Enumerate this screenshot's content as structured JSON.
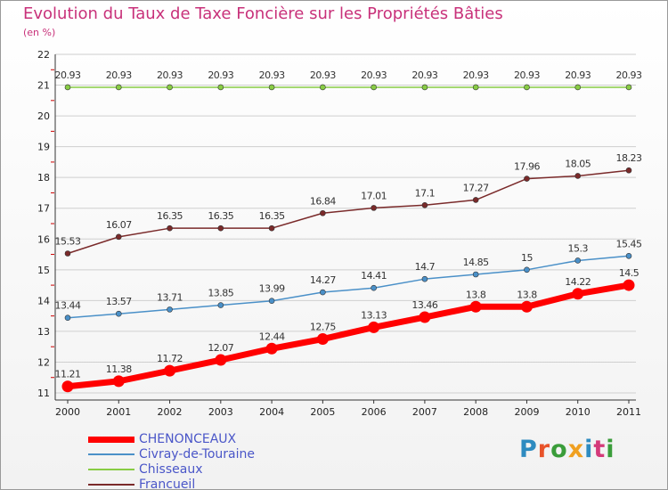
{
  "title": "Evolution du Taux de Taxe Foncière sur les Propriétés Bâties",
  "unit_label": "(en %)",
  "brand_logo": "Proxiti",
  "colors": {
    "title": "#c8317a",
    "legend_text": "#4a56c8",
    "grid": "#cfcfcf",
    "axis": "#333333",
    "logo": [
      "#2e8bc0",
      "#e8532a",
      "#3a9d3a",
      "#f0a020",
      "#2e8bc0",
      "#d43a7a",
      "#3a9d3a"
    ]
  },
  "chart_data": {
    "type": "line",
    "title": "Evolution du Taux de Taxe Foncière sur les Propriétés Bâties",
    "ylabel": "(en %)",
    "x": [
      "2000",
      "2001",
      "2002",
      "2003",
      "2004",
      "2005",
      "2006",
      "2007",
      "2008",
      "2009",
      "2010",
      "2011"
    ],
    "ylim": [
      11,
      22
    ],
    "yticks": [
      "11",
      "12",
      "13",
      "14",
      "15",
      "16",
      "17",
      "18",
      "19",
      "20",
      "21",
      "22"
    ],
    "grid": "horizontal",
    "legend_position": "bottom-left",
    "series": [
      {
        "name": "CHENONCEAUX",
        "color": "#ff0000",
        "values": [
          11.21,
          11.38,
          11.72,
          12.07,
          12.44,
          12.75,
          13.13,
          13.46,
          13.8,
          13.8,
          14.22,
          14.5
        ],
        "labels": [
          "11.21",
          "11.38",
          "11.72",
          "12.07",
          "12.44",
          "12.75",
          "13.13",
          "13.46",
          "13.8",
          "13.8",
          "14.22",
          "14.5"
        ]
      },
      {
        "name": "Civray-de-Touraine",
        "color": "#4a90c8",
        "values": [
          13.44,
          13.57,
          13.71,
          13.85,
          13.99,
          14.27,
          14.41,
          14.7,
          14.85,
          15,
          15.3,
          15.45
        ],
        "labels": [
          "13.44",
          "13.57",
          "13.71",
          "13.85",
          "13.99",
          "14.27",
          "14.41",
          "14.7",
          "14.85",
          "15",
          "15.3",
          "15.45"
        ]
      },
      {
        "name": "Chisseaux",
        "color": "#88cc44",
        "values": [
          20.93,
          20.93,
          20.93,
          20.93,
          20.93,
          20.93,
          20.93,
          20.93,
          20.93,
          20.93,
          20.93,
          20.93
        ],
        "labels": [
          "20.93",
          "20.93",
          "20.93",
          "20.93",
          "20.93",
          "20.93",
          "20.93",
          "20.93",
          "20.93",
          "20.93",
          "20.93",
          "20.93"
        ]
      },
      {
        "name": "Francueil",
        "color": "#7a2a2a",
        "values": [
          15.53,
          16.07,
          16.35,
          16.35,
          16.35,
          16.84,
          17.01,
          17.1,
          17.27,
          17.96,
          18.05,
          18.23
        ],
        "labels": [
          "15.53",
          "16.07",
          "16.35",
          "16.35",
          "16.35",
          "16.84",
          "17.01",
          "17.1",
          "17.27",
          "17.96",
          "18.05",
          "18.23"
        ]
      }
    ]
  }
}
